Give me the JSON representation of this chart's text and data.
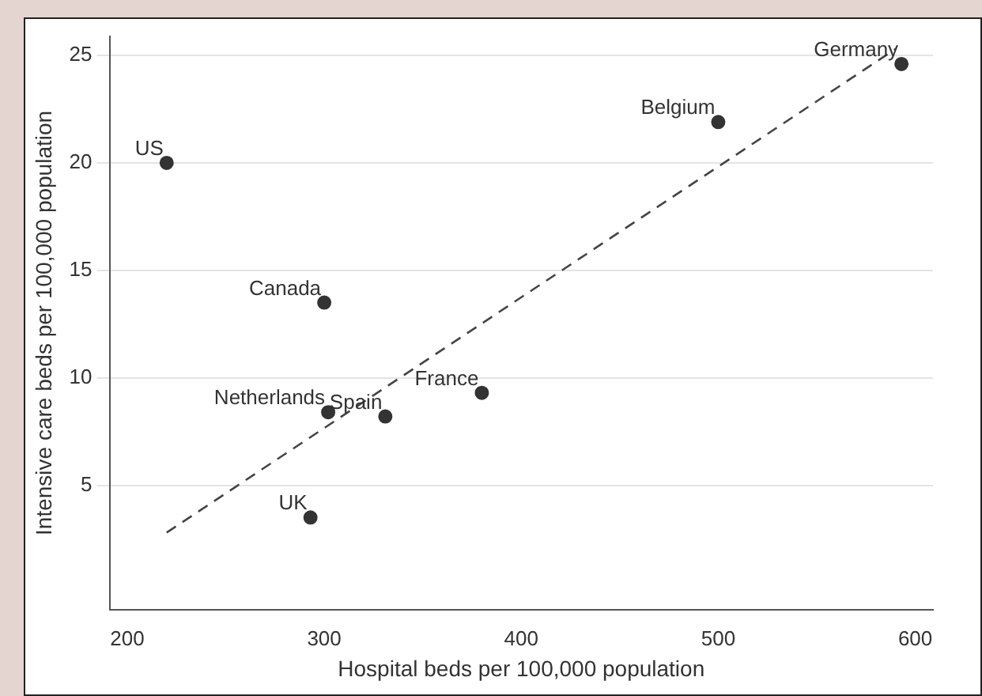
{
  "chart_data": {
    "type": "scatter",
    "xlabel": "Hospital beds per 100,000 population",
    "ylabel": "Intensive care beds per 100,000 population",
    "xlim": [
      191,
      609
    ],
    "ylim": [
      -0.8,
      25.9
    ],
    "xticks": [
      200,
      300,
      400,
      500,
      600
    ],
    "yticks": [
      5,
      10,
      15,
      20,
      25
    ],
    "grid": "y",
    "legend": false,
    "series": [
      {
        "color": "#333333",
        "marker": "circle",
        "x": [
          220,
          300,
          302,
          331,
          380,
          293,
          500,
          593
        ],
        "values": [
          20,
          13.5,
          8.4,
          8.2,
          9.3,
          3.5,
          21.9,
          24.6
        ]
      },
      {
        "type": "line",
        "color": "#444444",
        "marker": "none",
        "line_style": "dashed",
        "x": [
          220,
          590
        ],
        "values": [
          2.8,
          25.3
        ]
      }
    ],
    "annotations": [
      {
        "text": "US",
        "x": 220,
        "y": 20
      },
      {
        "text": "Canada",
        "x": 300,
        "y": 13.5
      },
      {
        "text": "Netherlands",
        "x": 302,
        "y": 8.4
      },
      {
        "text": "Spain",
        "x": 331,
        "y": 8.2
      },
      {
        "text": "France",
        "x": 380,
        "y": 9.3
      },
      {
        "text": "UK",
        "x": 293,
        "y": 3.5
      },
      {
        "text": "Belgium",
        "x": 500,
        "y": 21.9
      },
      {
        "text": "Germany",
        "x": 593,
        "y": 24.6
      }
    ]
  }
}
